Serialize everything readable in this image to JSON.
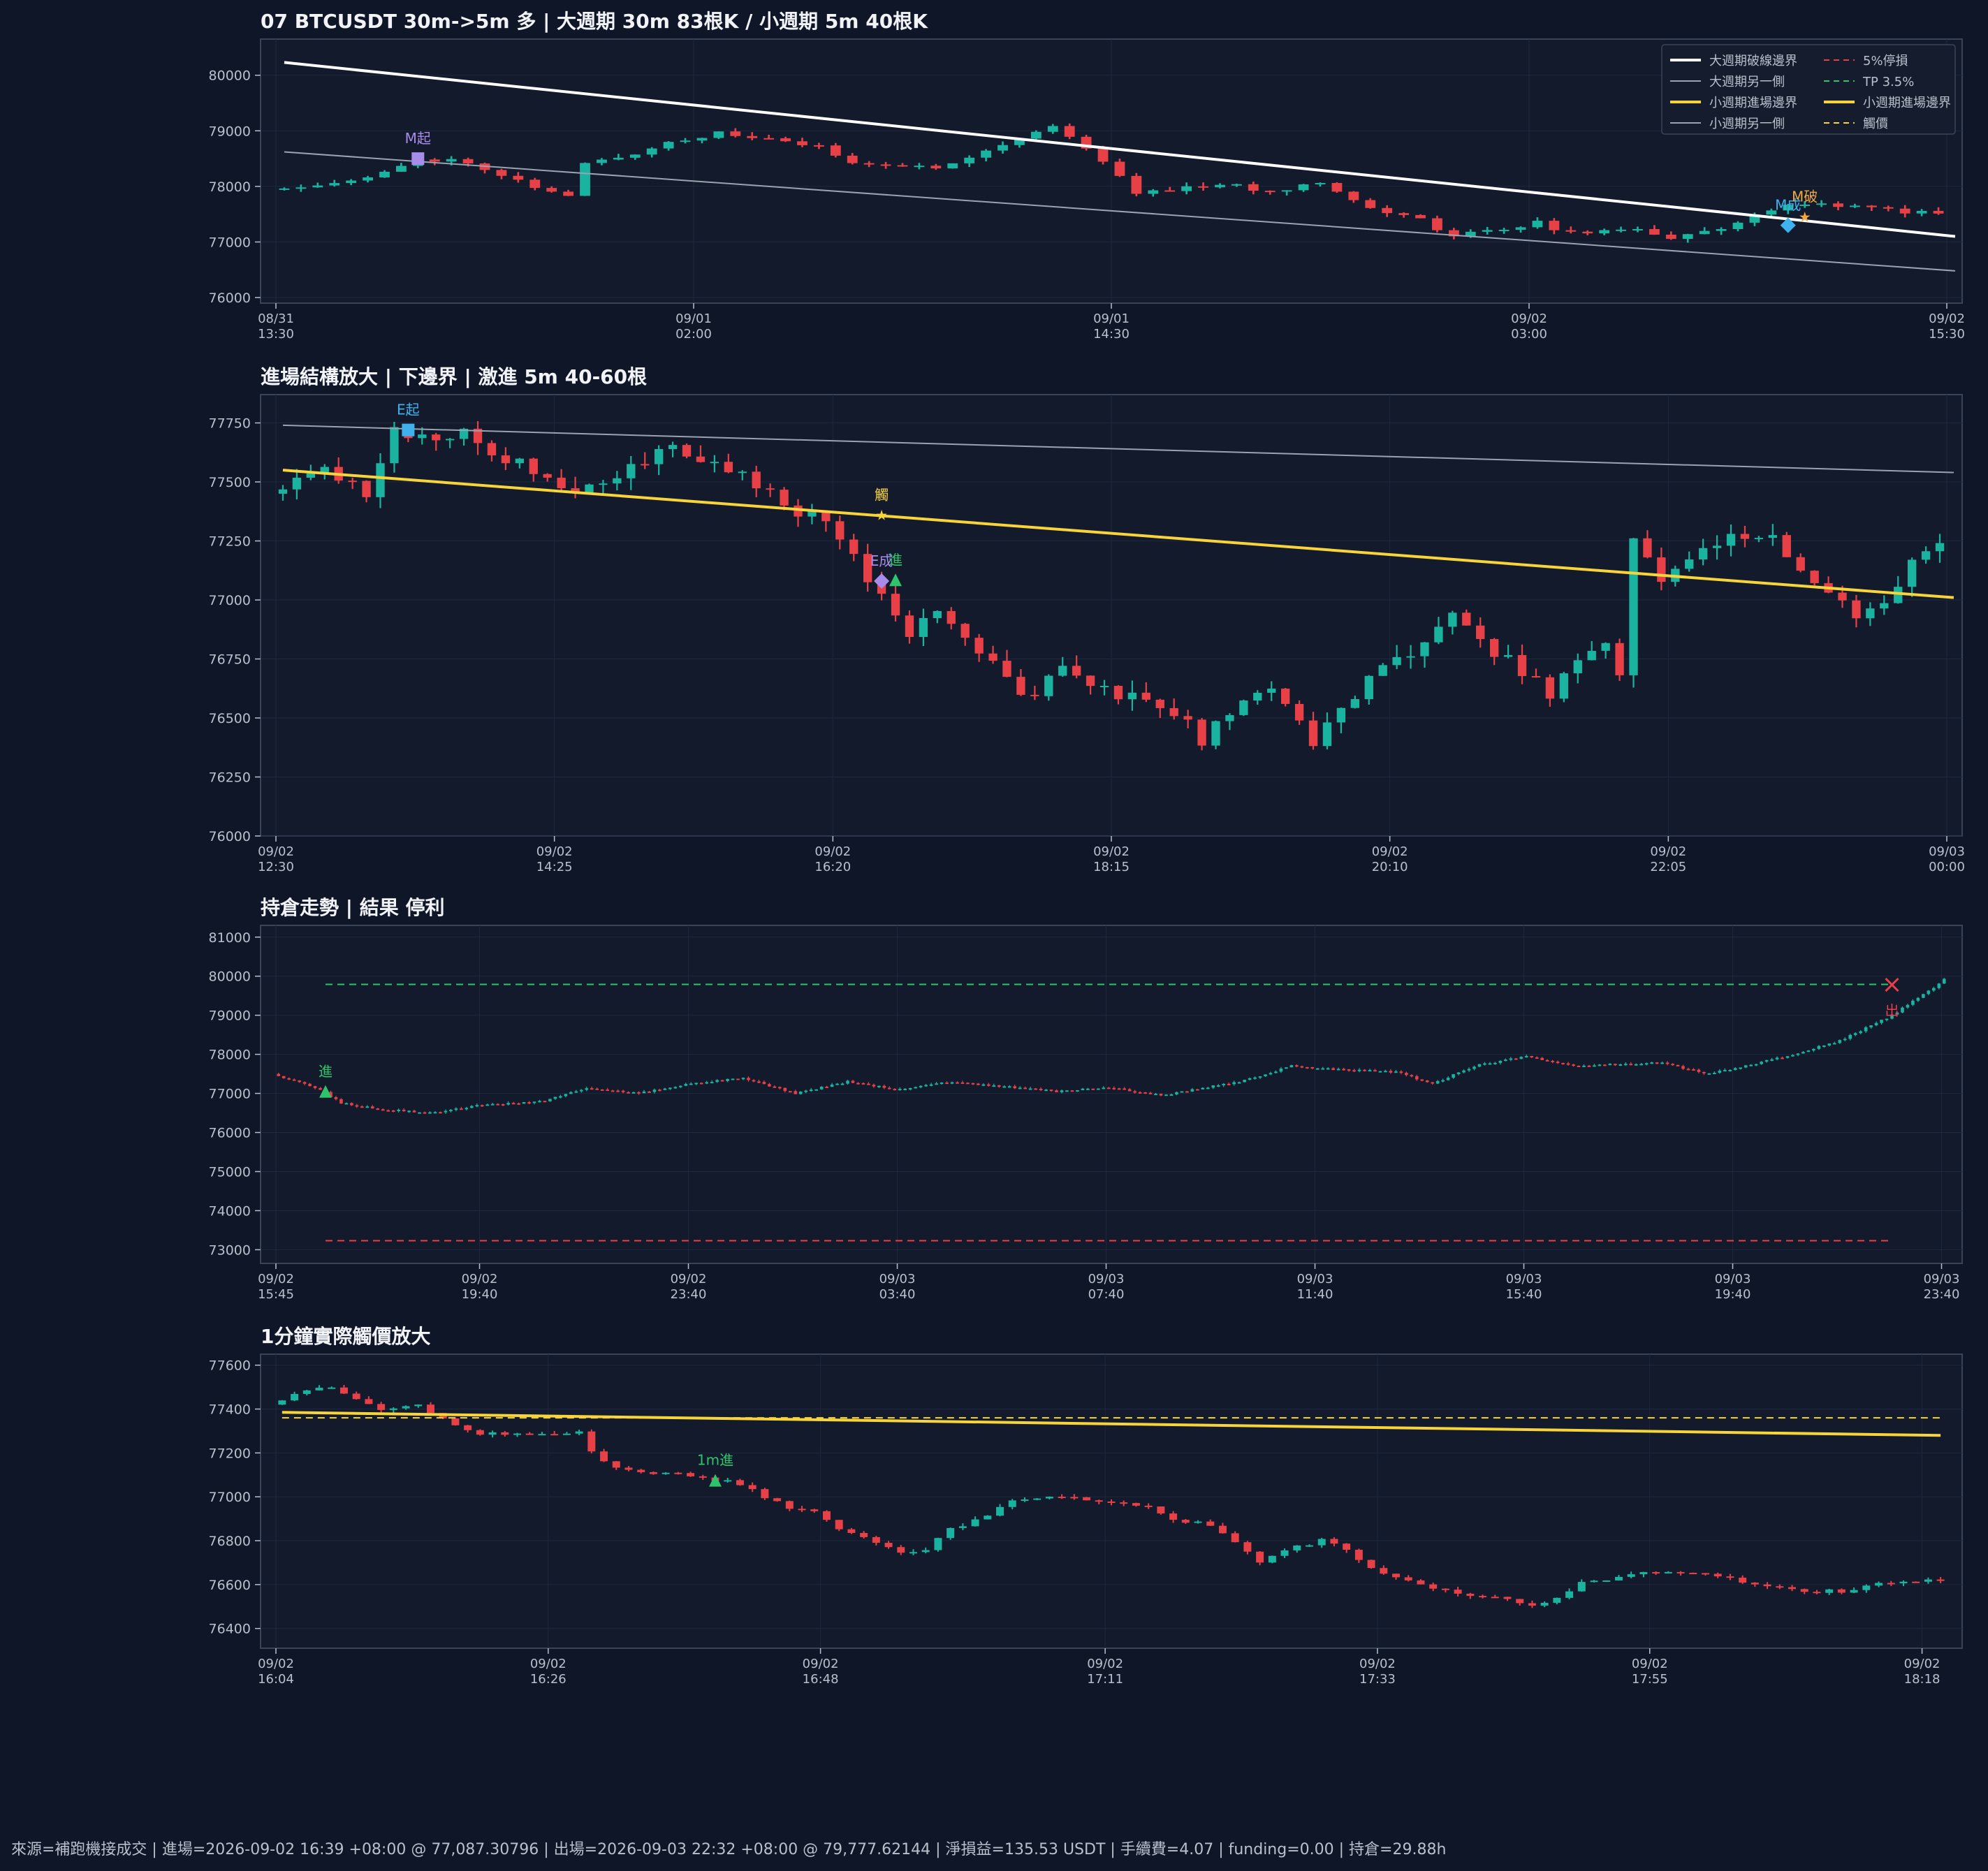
{
  "colors": {
    "background": "#0f1628",
    "plot_bg": "#121a2b",
    "frame": "#3a4458",
    "grid": "#1e2840",
    "tick_text": "#b9c0cc",
    "title_text": "#f1f3f7",
    "up": "#1ab3a0",
    "down": "#e84047",
    "upper_boundary": "#ffffff",
    "other_side": "#9aa3b2",
    "yellow": "#f7d43a",
    "stop_loss": "#e84047",
    "take_profit": "#2ec46b",
    "marker_purple": "#a98bea",
    "marker_blue": "#3eb1ee",
    "marker_green": "#2ec46b",
    "marker_orange": "#f0a93a",
    "marker_red": "#e84047"
  },
  "footer": "來源=補跑機接成交 | 進場=2026-09-02 16:39 +08:00 @ 77,087.30796 | 出場=2026-09-03 22:32 +08:00 @ 79,777.62144 | 淨損益=135.53 USDT | 手續費=4.07 | funding=0.00 | 持倉=29.88h",
  "chart_data": [
    {
      "id": "p1",
      "type": "candlestick",
      "title": "07 BTCUSDT 30m->5m 多 | 大週期 30m 83根K / 小週期 5m 40根K",
      "y_ticks": [
        76000,
        77000,
        78000,
        79000,
        80000
      ],
      "ylim": [
        75900,
        80650
      ],
      "n_bars": 100,
      "x_ticks": [
        {
          "i": 0,
          "label": "08/31|13:30"
        },
        {
          "i": 25,
          "label": "09/01|02:00"
        },
        {
          "i": 50,
          "label": "09/01|14:30"
        },
        {
          "i": 75,
          "label": "09/02|03:00"
        },
        {
          "i": 100,
          "label": "09/02|15:30"
        }
      ],
      "anchors": [
        [
          0,
          77950
        ],
        [
          3,
          78050
        ],
        [
          6,
          78150
        ],
        [
          8,
          78350
        ],
        [
          9,
          78500
        ],
        [
          12,
          78450
        ],
        [
          15,
          78100
        ],
        [
          17,
          77900
        ],
        [
          18,
          77820
        ],
        [
          19,
          78400
        ],
        [
          22,
          78600
        ],
        [
          24,
          78800
        ],
        [
          27,
          78950
        ],
        [
          30,
          78850
        ],
        [
          33,
          78700
        ],
        [
          35,
          78450
        ],
        [
          38,
          78350
        ],
        [
          40,
          78350
        ],
        [
          44,
          78750
        ],
        [
          47,
          79100
        ],
        [
          49,
          78700
        ],
        [
          52,
          77900
        ],
        [
          54,
          77950
        ],
        [
          57,
          78050
        ],
        [
          60,
          77900
        ],
        [
          63,
          78100
        ],
        [
          66,
          77600
        ],
        [
          69,
          77400
        ],
        [
          71,
          77100
        ],
        [
          73,
          77200
        ],
        [
          76,
          77350
        ],
        [
          78,
          77150
        ],
        [
          82,
          77250
        ],
        [
          84,
          77050
        ],
        [
          87,
          77250
        ],
        [
          90,
          77600
        ],
        [
          93,
          77700
        ],
        [
          96,
          77600
        ],
        [
          100,
          77500
        ]
      ],
      "volatility": 90,
      "seed": 11,
      "lines": [
        {
          "name": "大週期破線邊界",
          "from": [
            0,
            80230
          ],
          "to": [
            100,
            77100
          ],
          "color": "#ffffff",
          "width": 4,
          "dash": ""
        },
        {
          "name": "大週期另一側",
          "from": [
            0,
            78620
          ],
          "to": [
            100,
            76480
          ],
          "color": "#9aa3b2",
          "width": 2,
          "dash": ""
        }
      ],
      "markers": [
        {
          "i": 8,
          "y": 78500,
          "shape": "square",
          "color": "#a98bea",
          "label": "M起",
          "label_color": "#a98bea"
        },
        {
          "i": 90,
          "y": 77300,
          "shape": "diamond",
          "color": "#3eb1ee",
          "label": "M成",
          "label_color": "#3eb1ee"
        },
        {
          "i": 91,
          "y": 77450,
          "shape": "star",
          "color": "#f0a93a",
          "label": "M破",
          "label_color": "#f0a93a"
        }
      ],
      "legend": {
        "placement": "top-right",
        "items": [
          {
            "label": "大週期破線邊界",
            "color": "#ffffff",
            "dash": "",
            "width": 4
          },
          {
            "label": "大週期另一側",
            "color": "#9aa3b2",
            "dash": "",
            "width": 2
          },
          {
            "label": "小週期進場邊界",
            "color": "#f7d43a",
            "dash": "",
            "width": 4
          },
          {
            "label": "小週期另一側",
            "color": "#9aa3b2",
            "dash": "",
            "width": 2
          },
          {
            "label": "5%停損",
            "color": "#e84047",
            "dash": "8 6",
            "width": 2
          },
          {
            "label": "TP 3.5%",
            "color": "#2ec46b",
            "dash": "8 6",
            "width": 2
          },
          {
            "label": "小週期進場邊界",
            "color": "#f7d43a",
            "dash": "",
            "width": 4
          },
          {
            "label": "觸價",
            "color": "#f7d43a",
            "dash": "8 6",
            "width": 2
          }
        ]
      }
    },
    {
      "id": "p2",
      "type": "candlestick",
      "title": "進場結構放大 | 下邊界 | 激進 5m 40-60根",
      "y_ticks": [
        76000,
        76250,
        76500,
        76750,
        77000,
        77250,
        77500,
        77750
      ],
      "ylim": [
        76000,
        77870
      ],
      "n_bars": 120,
      "x_ticks": [
        {
          "i": 0,
          "label": "09/02|12:30"
        },
        {
          "i": 20,
          "label": "09/02|14:25"
        },
        {
          "i": 40,
          "label": "09/02|16:20"
        },
        {
          "i": 60,
          "label": "09/02|18:15"
        },
        {
          "i": 80,
          "label": "09/02|20:10"
        },
        {
          "i": 100,
          "label": "09/02|22:05"
        },
        {
          "i": 120,
          "label": "09/03|00:00"
        }
      ],
      "anchors": [
        [
          0,
          77450
        ],
        [
          3,
          77550
        ],
        [
          6,
          77520
        ],
        [
          7,
          77450
        ],
        [
          8,
          77580
        ],
        [
          9,
          77720
        ],
        [
          11,
          77680
        ],
        [
          14,
          77700
        ],
        [
          17,
          77600
        ],
        [
          20,
          77520
        ],
        [
          23,
          77460
        ],
        [
          26,
          77550
        ],
        [
          28,
          77650
        ],
        [
          32,
          77560
        ],
        [
          35,
          77500
        ],
        [
          38,
          77380
        ],
        [
          40,
          77320
        ],
        [
          42,
          77200
        ],
        [
          44,
          77000
        ],
        [
          46,
          76850
        ],
        [
          48,
          76950
        ],
        [
          51,
          76800
        ],
        [
          53,
          76650
        ],
        [
          55,
          76600
        ],
        [
          57,
          76700
        ],
        [
          60,
          76620
        ],
        [
          63,
          76560
        ],
        [
          66,
          76480
        ],
        [
          67,
          76400
        ],
        [
          70,
          76600
        ],
        [
          72,
          76650
        ],
        [
          74,
          76480
        ],
        [
          75,
          76400
        ],
        [
          77,
          76550
        ],
        [
          80,
          76700
        ],
        [
          83,
          76800
        ],
        [
          85,
          76950
        ],
        [
          87,
          76820
        ],
        [
          89,
          76750
        ],
        [
          92,
          76600
        ],
        [
          94,
          76750
        ],
        [
          96,
          76800
        ],
        [
          97,
          76700
        ],
        [
          98,
          77250
        ],
        [
          100,
          77100
        ],
        [
          102,
          77150
        ],
        [
          105,
          77300
        ],
        [
          108,
          77250
        ],
        [
          110,
          77100
        ],
        [
          112,
          77050
        ],
        [
          114,
          76950
        ],
        [
          116,
          77000
        ],
        [
          118,
          77150
        ],
        [
          120,
          77250
        ]
      ],
      "volatility": 65,
      "seed": 23,
      "lines": [
        {
          "name": "小週期另一側",
          "from": [
            0,
            77740
          ],
          "to": [
            120,
            77540
          ],
          "color": "#9aa3b2",
          "width": 2,
          "dash": ""
        },
        {
          "name": "小週期進場邊界",
          "from": [
            0,
            77550
          ],
          "to": [
            120,
            77010
          ],
          "color": "#f7d43a",
          "width": 4,
          "dash": ""
        }
      ],
      "markers": [
        {
          "i": 9,
          "y": 77720,
          "shape": "square",
          "color": "#3eb1ee",
          "label": "E起",
          "label_color": "#3eb1ee"
        },
        {
          "i": 43,
          "y": 77360,
          "shape": "star",
          "color": "#f7d43a",
          "label": "觸",
          "label_color": "#f7d43a"
        },
        {
          "i": 43,
          "y": 77080,
          "shape": "diamond",
          "color": "#a98bea",
          "label": "E成",
          "label_color": "#a98bea"
        },
        {
          "i": 44,
          "y": 77085,
          "shape": "tri",
          "color": "#2ec46b",
          "label": "進",
          "label_color": "#2ec46b"
        }
      ]
    },
    {
      "id": "p3",
      "type": "candlestick",
      "title": "持倉走勢 | 結果 停利",
      "y_ticks": [
        73000,
        74000,
        75000,
        76000,
        77000,
        78000,
        79000,
        80000,
        81000
      ],
      "ylim": [
        72650,
        81300
      ],
      "n_bars": 320,
      "x_ticks": [
        {
          "i": 0,
          "label": "09/02|15:45"
        },
        {
          "i": 39,
          "label": "09/02|19:40"
        },
        {
          "i": 79,
          "label": "09/02|23:40"
        },
        {
          "i": 119,
          "label": "09/03|03:40"
        },
        {
          "i": 159,
          "label": "09/03|07:40"
        },
        {
          "i": 199,
          "label": "09/03|11:40"
        },
        {
          "i": 239,
          "label": "09/03|15:40"
        },
        {
          "i": 279,
          "label": "09/03|19:40"
        },
        {
          "i": 319,
          "label": "09/03|23:40"
        }
      ],
      "anchors": [
        [
          0,
          77500
        ],
        [
          9,
          77100
        ],
        [
          13,
          76750
        ],
        [
          20,
          76600
        ],
        [
          30,
          76500
        ],
        [
          40,
          76700
        ],
        [
          52,
          76800
        ],
        [
          60,
          77150
        ],
        [
          70,
          77000
        ],
        [
          80,
          77250
        ],
        [
          90,
          77400
        ],
        [
          100,
          77000
        ],
        [
          110,
          77300
        ],
        [
          120,
          77100
        ],
        [
          130,
          77300
        ],
        [
          150,
          77050
        ],
        [
          160,
          77150
        ],
        [
          170,
          76950
        ],
        [
          185,
          77300
        ],
        [
          195,
          77700
        ],
        [
          205,
          77600
        ],
        [
          215,
          77550
        ],
        [
          222,
          77250
        ],
        [
          230,
          77700
        ],
        [
          240,
          77950
        ],
        [
          250,
          77700
        ],
        [
          265,
          77800
        ],
        [
          275,
          77500
        ],
        [
          285,
          77800
        ],
        [
          290,
          77950
        ],
        [
          300,
          78350
        ],
        [
          310,
          79000
        ],
        [
          318,
          79700
        ],
        [
          325,
          80500
        ],
        [
          332,
          80850
        ]
      ],
      "volatility": 55,
      "seed": 37,
      "lines": [
        {
          "name": "TP 3.5%",
          "from": [
            9,
            79790
          ],
          "to": [
            309,
            79790
          ],
          "color": "#2ec46b",
          "width": 2,
          "dash": "10 7"
        },
        {
          "name": "5%停損",
          "from": [
            9,
            73230
          ],
          "to": [
            309,
            73230
          ],
          "color": "#e84047",
          "width": 2,
          "dash": "10 7"
        }
      ],
      "markers": [
        {
          "i": 9,
          "y": 77050,
          "shape": "tri",
          "color": "#2ec46b",
          "label": "進",
          "label_color": "#2ec46b"
        },
        {
          "i": 309,
          "y": 79780,
          "shape": "x",
          "color": "#e84047",
          "label": "出",
          "label_color": "#e84047",
          "label_below": true
        }
      ]
    },
    {
      "id": "p4",
      "type": "candlestick",
      "title": "1分鐘實際觸價放大",
      "y_ticks": [
        76400,
        76600,
        76800,
        77000,
        77200,
        77400,
        77600
      ],
      "ylim": [
        76310,
        77650
      ],
      "n_bars": 135,
      "x_ticks": [
        {
          "i": 0,
          "label": "09/02|16:04"
        },
        {
          "i": 22,
          "label": "09/02|16:26"
        },
        {
          "i": 44,
          "label": "09/02|16:48"
        },
        {
          "i": 67,
          "label": "09/02|17:11"
        },
        {
          "i": 89,
          "label": "09/02|17:33"
        },
        {
          "i": 111,
          "label": "09/02|17:55"
        },
        {
          "i": 133,
          "label": "09/02|18:18"
        }
      ],
      "anchors": [
        [
          0,
          77420
        ],
        [
          3,
          77490
        ],
        [
          5,
          77500
        ],
        [
          7,
          77450
        ],
        [
          9,
          77400
        ],
        [
          12,
          77420
        ],
        [
          13,
          77390
        ],
        [
          15,
          77330
        ],
        [
          17,
          77290
        ],
        [
          20,
          77290
        ],
        [
          23,
          77280
        ],
        [
          25,
          77290
        ],
        [
          26,
          77200
        ],
        [
          28,
          77130
        ],
        [
          31,
          77100
        ],
        [
          33,
          77110
        ],
        [
          36,
          77080
        ],
        [
          38,
          77060
        ],
        [
          40,
          77000
        ],
        [
          42,
          76950
        ],
        [
          44,
          76930
        ],
        [
          46,
          76850
        ],
        [
          49,
          76790
        ],
        [
          51,
          76750
        ],
        [
          53,
          76760
        ],
        [
          55,
          76850
        ],
        [
          57,
          76890
        ],
        [
          60,
          76980
        ],
        [
          62,
          77000
        ],
        [
          65,
          76990
        ],
        [
          67,
          76980
        ],
        [
          71,
          76950
        ],
        [
          73,
          76900
        ],
        [
          76,
          76870
        ],
        [
          78,
          76790
        ],
        [
          80,
          76700
        ],
        [
          82,
          76760
        ],
        [
          85,
          76800
        ],
        [
          87,
          76760
        ],
        [
          89,
          76680
        ],
        [
          91,
          76630
        ],
        [
          95,
          76570
        ],
        [
          99,
          76540
        ],
        [
          101,
          76520
        ],
        [
          102,
          76500
        ],
        [
          104,
          76540
        ],
        [
          106,
          76610
        ],
        [
          110,
          76640
        ],
        [
          112,
          76660
        ],
        [
          115,
          76650
        ],
        [
          117,
          76640
        ],
        [
          119,
          76610
        ],
        [
          121,
          76590
        ],
        [
          124,
          76570
        ],
        [
          127,
          76570
        ],
        [
          131,
          76610
        ],
        [
          134,
          76620
        ]
      ],
      "volatility": 18,
      "seed": 53,
      "lines": [
        {
          "name": "觸價",
          "from": [
            0,
            77360
          ],
          "to": [
            134,
            77360
          ],
          "color": "#f7d43a",
          "width": 2,
          "dash": "10 7"
        },
        {
          "name": "小週期進場邊界",
          "from": [
            0,
            77385
          ],
          "to": [
            134,
            77280
          ],
          "color": "#f7d43a",
          "width": 4,
          "dash": ""
        }
      ],
      "markers": [
        {
          "i": 35,
          "y": 77075,
          "shape": "tri",
          "color": "#2ec46b",
          "label": "1m進",
          "label_color": "#2ec46b"
        }
      ]
    }
  ]
}
